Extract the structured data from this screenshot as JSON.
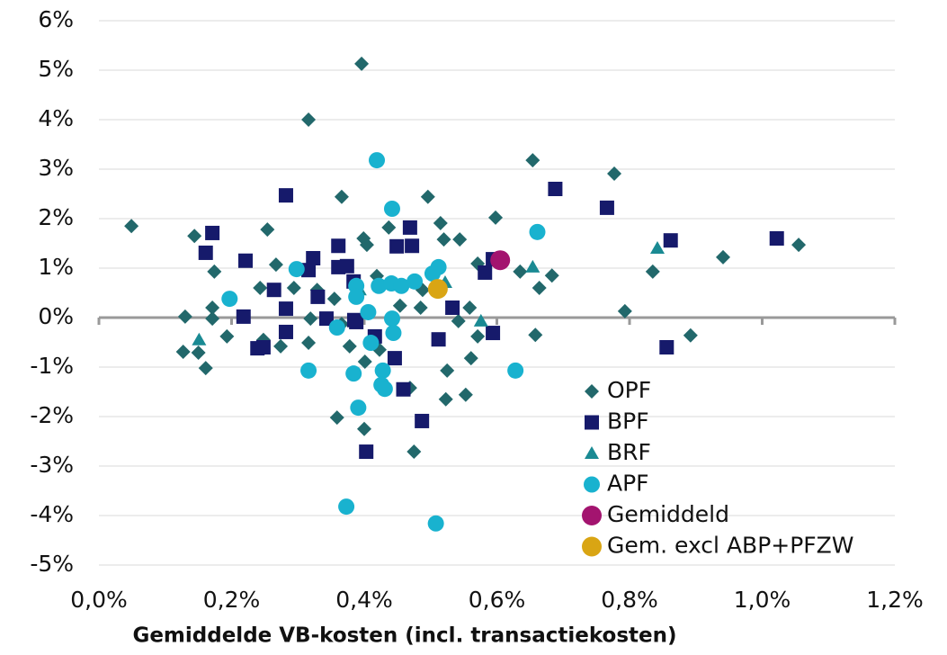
{
  "chart_data": {
    "type": "scatter",
    "x_label": "Gemiddelde VB-kosten (incl. transactiekosten)",
    "xlim": [
      0,
      1.2
    ],
    "xticks": [
      {
        "value": 0,
        "label": "0,0%"
      },
      {
        "value": 0.2,
        "label": "0,2%"
      },
      {
        "value": 0.4,
        "label": "0,4%"
      },
      {
        "value": 0.6,
        "label": "0,6%"
      },
      {
        "value": 0.8,
        "label": "0,8%"
      },
      {
        "value": 1.0,
        "label": "1,0%"
      },
      {
        "value": 1.2,
        "label": "1,2%"
      }
    ],
    "ylim": [
      -5,
      6
    ],
    "yticks": [
      {
        "value": -5,
        "label": "-5%"
      },
      {
        "value": -4,
        "label": "-4%"
      },
      {
        "value": -3,
        "label": "-3%"
      },
      {
        "value": -2,
        "label": "-2%"
      },
      {
        "value": -1,
        "label": "-1%"
      },
      {
        "value": 0,
        "label": "0%"
      },
      {
        "value": 1,
        "label": "1%"
      },
      {
        "value": 2,
        "label": "2%"
      },
      {
        "value": 3,
        "label": "3%"
      },
      {
        "value": 4,
        "label": "4%"
      },
      {
        "value": 5,
        "label": "5%"
      },
      {
        "value": 6,
        "label": "6%"
      }
    ],
    "grid": true,
    "legend": "lower right",
    "series": [
      {
        "name": "OPF",
        "color": "#22686b",
        "marker": "diamond",
        "x": [
          0.049,
          0.396,
          0.316,
          0.654,
          0.777,
          0.366,
          0.496,
          0.598,
          0.254,
          0.515,
          0.437,
          0.144,
          0.399,
          0.52,
          0.544,
          0.404,
          1.055,
          0.941,
          0.267,
          0.571,
          0.635,
          0.683,
          0.835,
          0.174,
          0.419,
          0.664,
          0.243,
          0.294,
          0.329,
          0.488,
          0.355,
          0.454,
          0.485,
          0.559,
          0.171,
          0.793,
          0.13,
          0.171,
          0.319,
          0.542,
          0.366,
          0.193,
          0.571,
          0.658,
          0.892,
          0.248,
          0.274,
          0.316,
          0.378,
          0.127,
          0.15,
          0.423,
          0.401,
          0.561,
          0.161,
          0.525,
          0.469,
          0.553,
          0.523,
          0.359,
          0.4,
          0.475
        ],
        "values": [
          1.85,
          5.13,
          4.0,
          3.18,
          2.91,
          2.44,
          2.44,
          2.02,
          1.78,
          1.91,
          1.82,
          1.65,
          1.6,
          1.58,
          1.58,
          1.47,
          1.47,
          1.22,
          1.07,
          1.09,
          0.93,
          0.85,
          0.93,
          0.93,
          0.84,
          0.6,
          0.6,
          0.6,
          0.56,
          0.56,
          0.38,
          0.24,
          0.2,
          0.2,
          0.2,
          0.13,
          0.02,
          -0.02,
          -0.02,
          -0.07,
          -0.13,
          -0.38,
          -0.38,
          -0.35,
          -0.36,
          -0.45,
          -0.58,
          -0.51,
          -0.58,
          -0.69,
          -0.71,
          -0.65,
          -0.89,
          -0.82,
          -1.02,
          -1.07,
          -1.42,
          -1.56,
          -1.65,
          -2.02,
          -2.25,
          -2.71
        ]
      },
      {
        "name": "BPF",
        "color": "#161a6b",
        "marker": "square",
        "x": [
          0.282,
          0.688,
          0.766,
          1.022,
          0.862,
          0.171,
          0.469,
          0.472,
          0.449,
          0.361,
          0.161,
          0.323,
          0.221,
          0.594,
          0.374,
          0.361,
          0.316,
          0.582,
          0.384,
          0.264,
          0.33,
          0.282,
          0.218,
          0.343,
          0.385,
          0.533,
          0.416,
          0.282,
          0.594,
          0.512,
          0.239,
          0.248,
          0.856,
          0.446,
          0.459,
          0.487,
          0.403,
          0.388
        ],
        "values": [
          2.47,
          2.6,
          2.22,
          1.6,
          1.56,
          1.71,
          1.82,
          1.45,
          1.44,
          1.45,
          1.31,
          1.2,
          1.15,
          1.18,
          1.04,
          1.02,
          0.96,
          0.91,
          0.73,
          0.56,
          0.42,
          0.18,
          0.02,
          -0.02,
          -0.05,
          0.2,
          -0.38,
          -0.29,
          -0.31,
          -0.44,
          -0.62,
          -0.6,
          -0.6,
          -0.82,
          -1.45,
          -2.09,
          -2.71,
          -0.09
        ]
      },
      {
        "name": "BRF",
        "color": "#1a8a93",
        "marker": "triangle",
        "x": [
          0.842,
          0.654,
          0.522,
          0.151,
          0.576,
          0.393
        ],
        "values": [
          1.4,
          1.02,
          0.71,
          -0.45,
          -0.07,
          0.56
        ]
      },
      {
        "name": "APF",
        "color": "#19b2cf",
        "marker": "circle",
        "x": [
          0.419,
          0.442,
          0.661,
          0.298,
          0.512,
          0.503,
          0.388,
          0.422,
          0.441,
          0.456,
          0.476,
          0.388,
          0.197,
          0.406,
          0.442,
          0.359,
          0.444,
          0.41,
          0.316,
          0.384,
          0.628,
          0.428,
          0.426,
          0.431,
          0.391,
          0.373,
          0.508
        ],
        "values": [
          3.18,
          2.2,
          1.73,
          0.98,
          1.02,
          0.89,
          0.64,
          0.64,
          0.69,
          0.64,
          0.73,
          0.42,
          0.38,
          0.11,
          -0.02,
          -0.2,
          -0.31,
          -0.51,
          -1.07,
          -1.13,
          -1.07,
          -1.07,
          -1.36,
          -1.44,
          -1.82,
          -3.82,
          -4.16
        ]
      },
      {
        "name": "Gemiddeld",
        "color": "#a3146f",
        "marker": "bigcircle",
        "x": [
          0.605
        ],
        "values": [
          1.16
        ]
      },
      {
        "name": "Gem. excl ABP+PFZW",
        "color": "#d9a514",
        "marker": "bigcircle",
        "x": [
          0.511
        ],
        "values": [
          0.58
        ]
      }
    ]
  }
}
